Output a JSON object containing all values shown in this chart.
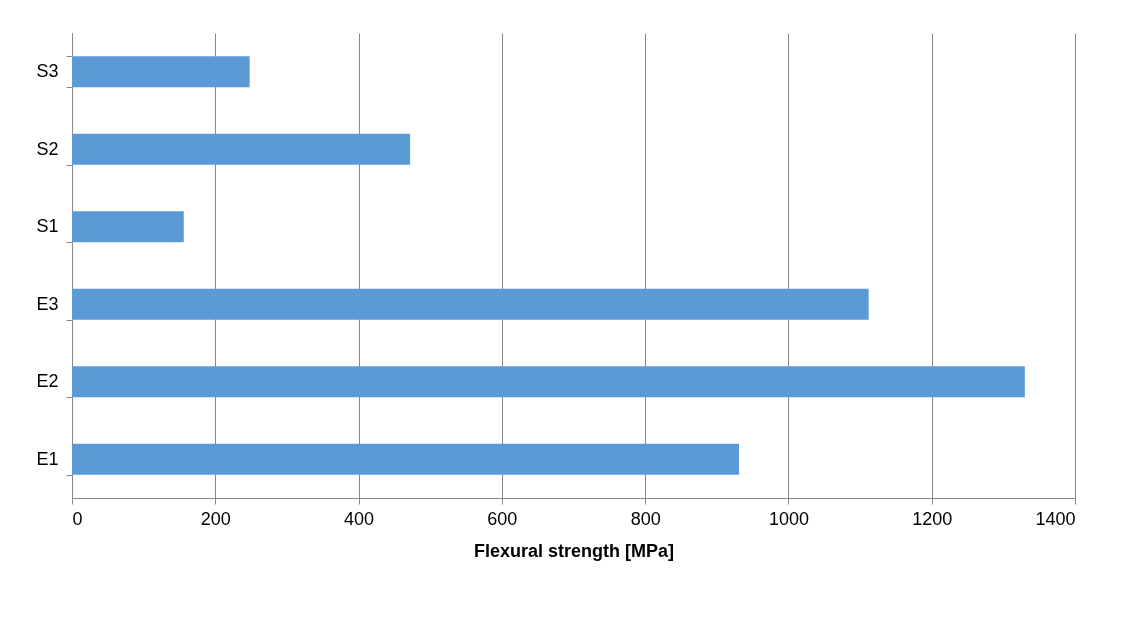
{
  "chart_data": {
    "type": "bar",
    "orientation": "horizontal",
    "xlabel": "Flexural strength [MPa]",
    "categories": [
      "S3",
      "S2",
      "S1",
      "E3",
      "E2",
      "E1"
    ],
    "values": [
      248,
      472,
      156,
      1112,
      1330,
      931
    ],
    "color": "#5b9bd5",
    "xlim": [
      0,
      1400
    ],
    "xticks": [
      0,
      200,
      400,
      600,
      800,
      1000,
      1200,
      1400
    ],
    "grid": "x"
  }
}
